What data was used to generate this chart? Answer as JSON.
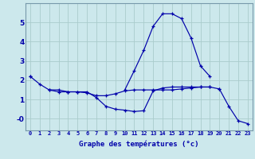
{
  "xlabel": "Graphe des températures (°c)",
  "background_color": "#cce8ec",
  "grid_color": "#aacccc",
  "line_color": "#0000aa",
  "hours": [
    0,
    1,
    2,
    3,
    4,
    5,
    6,
    7,
    8,
    9,
    10,
    11,
    12,
    13,
    14,
    15,
    16,
    17,
    18,
    19,
    20,
    21,
    22,
    23
  ],
  "curves": [
    [
      2.2,
      1.8,
      1.5,
      1.5,
      1.4,
      1.4,
      1.4,
      1.1,
      0.65,
      0.5,
      0.45,
      0.38,
      0.42,
      1.45,
      1.6,
      1.65,
      1.65,
      1.65,
      1.65,
      1.65,
      null,
      null,
      null,
      null
    ],
    [
      null,
      null,
      null,
      null,
      null,
      null,
      null,
      null,
      null,
      null,
      1.5,
      2.5,
      3.55,
      4.8,
      5.45,
      5.45,
      5.2,
      4.2,
      2.75,
      2.2,
      null,
      null,
      null,
      null
    ],
    [
      2.2,
      null,
      null,
      null,
      null,
      null,
      null,
      null,
      null,
      null,
      null,
      null,
      null,
      null,
      null,
      null,
      null,
      null,
      null,
      null,
      1.55,
      0.65,
      -0.1,
      -0.25
    ],
    [
      null,
      null,
      1.5,
      1.4,
      1.4,
      1.4,
      1.35,
      1.2,
      1.2,
      1.3,
      1.45,
      1.5,
      1.5,
      1.5,
      1.5,
      1.5,
      1.55,
      1.6,
      1.65,
      1.65,
      1.55,
      null,
      null,
      null
    ]
  ],
  "ylim": [
    -0.6,
    6.0
  ],
  "yticks": [
    0,
    1,
    2,
    3,
    4,
    5
  ],
  "ytick_labels": [
    "-0",
    "1",
    "2",
    "3",
    "4",
    "5"
  ],
  "xlim": [
    -0.5,
    23.5
  ],
  "xtick_labels": [
    "0",
    "1",
    "2",
    "3",
    "4",
    "5",
    "6",
    "7",
    "8",
    "9",
    "10",
    "11",
    "12",
    "13",
    "14",
    "15",
    "16",
    "17",
    "18",
    "19",
    "20",
    "21",
    "22",
    "23"
  ]
}
